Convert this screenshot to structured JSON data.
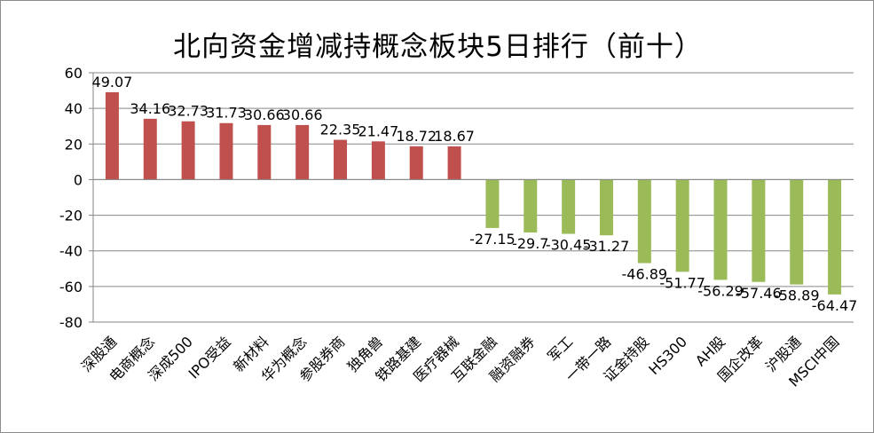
{
  "chart_data": {
    "type": "bar",
    "title": "北向资金增减持概念板块5日排行（前十）",
    "xlabel": "",
    "ylabel": "",
    "ylim": [
      -80,
      60
    ],
    "yticks": [
      60,
      40,
      20,
      0,
      -20,
      -40,
      -60,
      -80
    ],
    "grid": true,
    "categories": [
      "深股通",
      "电商概念",
      "深成500",
      "IPO受益",
      "新材料",
      "华为概念",
      "参股券商",
      "独角兽",
      "铁路基建",
      "医疗器械",
      "互联金融",
      "融资融券",
      "军工",
      "一带一路",
      "证金持股",
      "HS300",
      "AH股",
      "国企改革",
      "沪股通",
      "MSCI中国"
    ],
    "values": [
      49.07,
      34.16,
      32.73,
      31.73,
      30.66,
      30.66,
      22.35,
      21.47,
      18.72,
      18.67,
      -27.15,
      -29.7,
      -30.45,
      -31.27,
      -46.89,
      -51.77,
      -56.29,
      -57.46,
      -58.89,
      -64.47
    ],
    "value_labels": [
      "49.07",
      "34.16",
      "32.73",
      "31.73",
      "30.66",
      "30.66",
      "22.35",
      "21.47",
      "18.72",
      "18.67",
      "-27.15",
      "-29.7",
      "-30.45",
      "-31.27",
      "-46.89",
      "-51.77",
      "-56.29",
      "-57.46",
      "-58.89",
      "-64.47"
    ],
    "colors": {
      "positive": "#c0504d",
      "negative": "#9bbb59",
      "grid": "#868686",
      "axis": "#868686"
    }
  }
}
